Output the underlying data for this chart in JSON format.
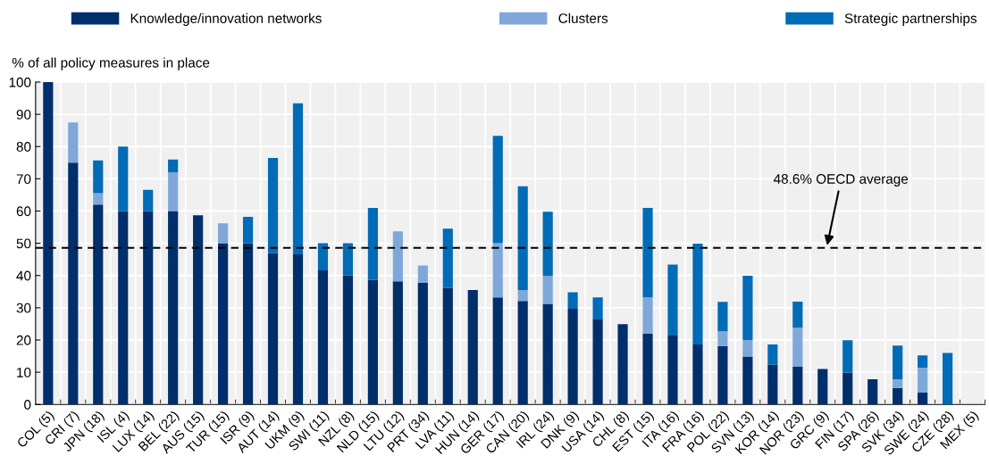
{
  "chart_data": {
    "type": "bar",
    "stacked": true,
    "ylabel": "% of all policy measures in place",
    "categories": [
      "COL (5)",
      "CRI (7)",
      "JPN (18)",
      "ISL (4)",
      "LUX (14)",
      "BEL (22)",
      "AUS (15)",
      "TUR (15)",
      "ISR (9)",
      "AUT (14)",
      "UKM (9)",
      "SWI (11)",
      "NZL (8)",
      "NLD (15)",
      "LTU (12)",
      "PRT (34)",
      "LVA (11)",
      "HUN (14)",
      "GER (17)",
      "CAN (20)",
      "IRL (24)",
      "DNK (9)",
      "USA (14)",
      "CHL (8)",
      "EST (15)",
      "ITA (16)",
      "FRA (16)",
      "POL (22)",
      "SVN (13)",
      "KOR (14)",
      "NOR (23)",
      "GRC (9)",
      "FIN (17)",
      "SPA (26)",
      "SVK (34)",
      "SWE (24)",
      "CZE (28)",
      "MEX (5)"
    ],
    "series": [
      {
        "name": "Knowledge/innovation networks",
        "color": "#002f6c",
        "values": [
          100,
          75,
          62,
          60,
          60,
          60,
          58.7,
          50,
          50,
          46.9,
          46.6,
          41.6,
          40,
          38.6,
          38.2,
          37.7,
          36.2,
          35.5,
          33.2,
          32.1,
          31.2,
          29.7,
          26.4,
          24.9,
          22,
          21.6,
          18.6,
          18.1,
          14.9,
          12.4,
          11.7,
          11,
          9.9,
          7.8,
          5.1,
          3.7,
          0,
          0
        ]
      },
      {
        "name": "Clusters",
        "color": "#7fa8d9",
        "values": [
          0,
          12.5,
          3.5,
          0,
          0,
          12,
          0,
          6.2,
          0,
          0,
          0,
          0,
          0,
          0,
          15.5,
          5.4,
          0,
          0,
          16.8,
          3.4,
          8.7,
          0,
          0,
          0,
          11.2,
          0,
          0,
          4.6,
          5.1,
          0,
          12.1,
          0,
          0,
          0,
          2.7,
          7.7,
          0,
          0
        ]
      },
      {
        "name": "Strategic partnerships",
        "color": "#006bb6",
        "values": [
          0,
          0,
          10.2,
          20,
          6.6,
          4,
          0,
          0,
          8.2,
          29.6,
          46.8,
          8.4,
          10,
          22.4,
          0,
          0,
          18.3,
          0,
          33.3,
          32.2,
          19.9,
          5.1,
          6.8,
          0,
          27.8,
          21.8,
          31.3,
          9.1,
          19.9,
          6.2,
          8.1,
          0,
          10,
          0,
          10.5,
          3.8,
          16,
          0
        ]
      }
    ],
    "ylim": [
      0,
      100
    ],
    "yticks": [
      0,
      10,
      20,
      30,
      40,
      50,
      60,
      70,
      80,
      90,
      100
    ],
    "ref_lines": [
      {
        "axis": "y",
        "value": 48.6,
        "label": "48.6% OECD average",
        "color": "#000000",
        "line_style": "dashed"
      }
    ],
    "grid": true,
    "legend": "top"
  }
}
